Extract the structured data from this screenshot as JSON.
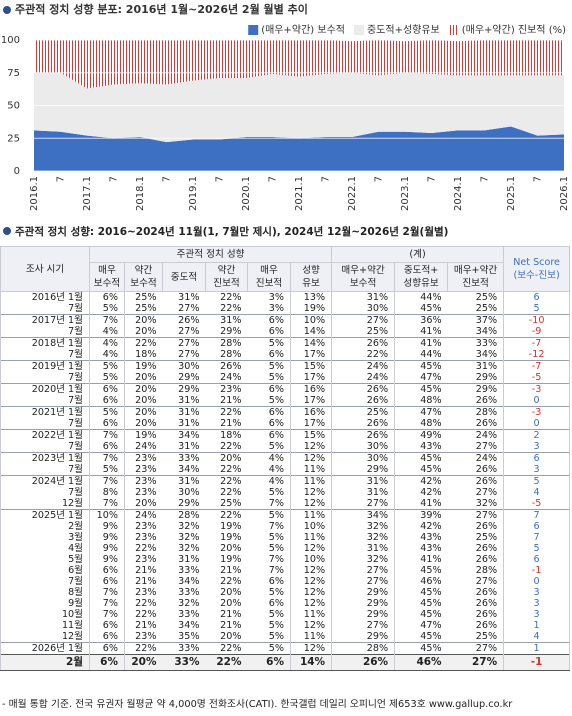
{
  "chart_data": {
    "type": "stacked_area",
    "title": "주관적 정치 성향 분포: 2016년 1월~2026년 2월 월별 추이",
    "categories": [
      "2016.1",
      "7",
      "2017.1",
      "7",
      "2018.1",
      "7",
      "2019.1",
      "7",
      "2020.1",
      "7",
      "2021.1",
      "7",
      "2022.1",
      "7",
      "2023.1",
      "7",
      "2024.1",
      "7",
      "2025.1",
      "7",
      "2026.1"
    ],
    "series": [
      {
        "name": "(매우+약간) 보수적",
        "color": "#3d6fc2",
        "values": [
          31,
          30,
          27,
          25,
          26,
          22,
          24,
          24,
          26,
          26,
          25,
          26,
          26,
          30,
          30,
          29,
          31,
          31,
          34,
          27,
          28
        ]
      },
      {
        "name": "중도적+성향유보",
        "color": "#ebebeb",
        "values": [
          44,
          45,
          36,
          41,
          41,
          44,
          45,
          47,
          45,
          48,
          47,
          48,
          49,
          43,
          45,
          45,
          42,
          42,
          39,
          46,
          45
        ]
      },
      {
        "name": "(매우+약간) 진보적 (%)",
        "color": "#c9403f",
        "values": [
          25,
          25,
          37,
          34,
          33,
          34,
          31,
          29,
          29,
          26,
          28,
          26,
          24,
          27,
          24,
          26,
          26,
          27,
          27,
          27,
          27
        ]
      }
    ],
    "ylim": [
      0,
      100
    ],
    "yticks": [
      0,
      25,
      50,
      75,
      100
    ],
    "grid": true,
    "legend": "top-right"
  },
  "table": {
    "title": "주관적 정치 성향: 2016~2024년 11월(1, 7월만 제시), 2024년 12월~2026년 2월(월별)",
    "header": {
      "period": "조사 시기",
      "group": "주관적 정치 성향",
      "sum": "(계)",
      "net": "Net Score\n(보수-진보)",
      "columns": [
        "매우\n보수적",
        "약간\n보수적",
        "중도적",
        "약간\n진보적",
        "매우\n진보적",
        "성향\n유보",
        "매우+약간\n보수적",
        "중도적+\n성향유보",
        "매우+약간\n진보적"
      ]
    },
    "rows": [
      [
        "2016년 1월",
        "6%",
        "25%",
        "31%",
        "22%",
        "3%",
        "13%",
        "31%",
        "44%",
        "25%",
        6
      ],
      [
        "7월",
        "5%",
        "25%",
        "27%",
        "22%",
        "3%",
        "19%",
        "30%",
        "45%",
        "25%",
        5
      ],
      [
        "2017년 1월",
        "7%",
        "20%",
        "26%",
        "31%",
        "6%",
        "10%",
        "27%",
        "36%",
        "37%",
        -10
      ],
      [
        "7월",
        "4%",
        "20%",
        "27%",
        "29%",
        "6%",
        "14%",
        "25%",
        "41%",
        "34%",
        -9
      ],
      [
        "2018년 1월",
        "4%",
        "22%",
        "27%",
        "28%",
        "5%",
        "14%",
        "26%",
        "41%",
        "33%",
        -7
      ],
      [
        "7월",
        "4%",
        "18%",
        "27%",
        "28%",
        "6%",
        "17%",
        "22%",
        "44%",
        "34%",
        -12
      ],
      [
        "2019년 1월",
        "5%",
        "19%",
        "30%",
        "26%",
        "5%",
        "15%",
        "24%",
        "45%",
        "31%",
        -7
      ],
      [
        "7월",
        "5%",
        "20%",
        "29%",
        "24%",
        "5%",
        "17%",
        "24%",
        "47%",
        "29%",
        -5
      ],
      [
        "2020년 1월",
        "6%",
        "20%",
        "29%",
        "23%",
        "6%",
        "16%",
        "26%",
        "45%",
        "29%",
        -3
      ],
      [
        "7월",
        "6%",
        "20%",
        "31%",
        "21%",
        "5%",
        "17%",
        "26%",
        "48%",
        "26%",
        0
      ],
      [
        "2021년 1월",
        "5%",
        "20%",
        "31%",
        "22%",
        "6%",
        "16%",
        "25%",
        "47%",
        "28%",
        -3
      ],
      [
        "7월",
        "6%",
        "20%",
        "31%",
        "21%",
        "6%",
        "17%",
        "26%",
        "48%",
        "26%",
        0
      ],
      [
        "2022년 1월",
        "7%",
        "19%",
        "34%",
        "18%",
        "6%",
        "15%",
        "26%",
        "49%",
        "24%",
        2
      ],
      [
        "7월",
        "6%",
        "24%",
        "31%",
        "22%",
        "5%",
        "12%",
        "30%",
        "43%",
        "27%",
        3
      ],
      [
        "2023년 1월",
        "7%",
        "23%",
        "33%",
        "20%",
        "4%",
        "12%",
        "30%",
        "45%",
        "24%",
        6
      ],
      [
        "7월",
        "5%",
        "23%",
        "34%",
        "22%",
        "4%",
        "11%",
        "29%",
        "45%",
        "26%",
        3
      ],
      [
        "2024년 1월",
        "7%",
        "23%",
        "31%",
        "22%",
        "4%",
        "11%",
        "31%",
        "42%",
        "26%",
        5
      ],
      [
        "7월",
        "8%",
        "23%",
        "30%",
        "22%",
        "5%",
        "12%",
        "31%",
        "42%",
        "27%",
        4
      ],
      [
        "12월",
        "7%",
        "20%",
        "29%",
        "25%",
        "7%",
        "12%",
        "27%",
        "41%",
        "32%",
        -5
      ],
      [
        "2025년 1월",
        "10%",
        "24%",
        "28%",
        "22%",
        "5%",
        "11%",
        "34%",
        "39%",
        "27%",
        7
      ],
      [
        "2월",
        "9%",
        "23%",
        "32%",
        "19%",
        "7%",
        "10%",
        "32%",
        "42%",
        "26%",
        6
      ],
      [
        "3월",
        "9%",
        "23%",
        "32%",
        "19%",
        "5%",
        "11%",
        "32%",
        "43%",
        "25%",
        7
      ],
      [
        "4월",
        "9%",
        "22%",
        "32%",
        "20%",
        "5%",
        "12%",
        "31%",
        "43%",
        "26%",
        5
      ],
      [
        "5월",
        "9%",
        "23%",
        "31%",
        "19%",
        "7%",
        "10%",
        "32%",
        "41%",
        "26%",
        6
      ],
      [
        "6월",
        "6%",
        "21%",
        "33%",
        "21%",
        "7%",
        "12%",
        "27%",
        "45%",
        "28%",
        -1
      ],
      [
        "7월",
        "6%",
        "21%",
        "34%",
        "22%",
        "6%",
        "12%",
        "27%",
        "46%",
        "27%",
        0
      ],
      [
        "8월",
        "7%",
        "23%",
        "33%",
        "20%",
        "5%",
        "12%",
        "29%",
        "45%",
        "26%",
        3
      ],
      [
        "9월",
        "7%",
        "22%",
        "32%",
        "20%",
        "6%",
        "12%",
        "29%",
        "45%",
        "26%",
        3
      ],
      [
        "10월",
        "7%",
        "22%",
        "33%",
        "21%",
        "5%",
        "11%",
        "29%",
        "45%",
        "26%",
        3
      ],
      [
        "11월",
        "6%",
        "21%",
        "34%",
        "21%",
        "5%",
        "12%",
        "27%",
        "47%",
        "26%",
        1
      ],
      [
        "12월",
        "6%",
        "23%",
        "35%",
        "20%",
        "5%",
        "11%",
        "29%",
        "45%",
        "25%",
        4
      ],
      [
        "2026년 1월",
        "6%",
        "22%",
        "33%",
        "22%",
        "5%",
        "12%",
        "28%",
        "45%",
        "27%",
        1
      ],
      [
        "2월",
        "6%",
        "20%",
        "33%",
        "22%",
        "6%",
        "14%",
        "26%",
        "46%",
        "27%",
        -1
      ]
    ],
    "footnote": "- 매월 통합 기준. 전국 유권자 월평균 약 4,000명 전화조사(CATI). 한국갤럽 데일리 오피니언 제653호 www.gallup.co.kr"
  }
}
